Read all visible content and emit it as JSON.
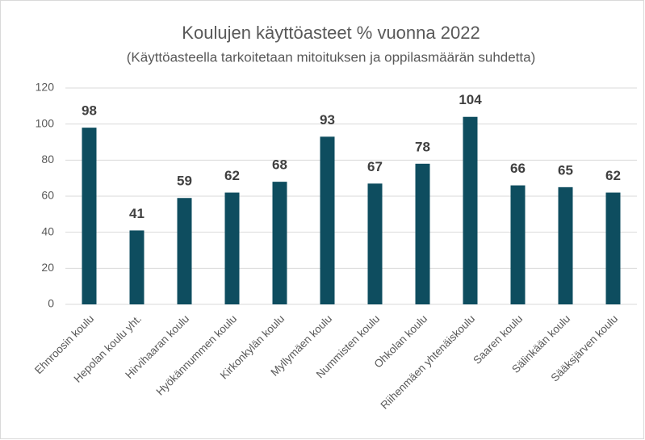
{
  "chart_data": {
    "type": "bar",
    "title": "Koulujen käyttöasteet % vuonna 2022",
    "subtitle": "(Käyttöasteella tarkoitetaan mitoituksen ja oppilasmäärän suhdetta)",
    "categories": [
      "Ehnroosin koulu",
      "Hepolan koulu yht.",
      "Hirvihaaran koulu",
      "Hyökännummen koulu",
      "Kirkonkylän koulu",
      "Myllymäen koulu",
      "Nummisten koulu",
      "Ohkolan koulu",
      "Riihenmäen yhtenäiskoulu",
      "Saaren koulu",
      "Sälinkään koulu",
      "Sääksjärven koulu"
    ],
    "values": [
      98,
      41,
      59,
      62,
      68,
      93,
      67,
      78,
      104,
      66,
      65,
      62
    ],
    "color": "#0e4d5f",
    "ylim": [
      0,
      120
    ],
    "yticks": [
      0,
      20,
      40,
      60,
      80,
      100,
      120
    ],
    "grid": true
  }
}
